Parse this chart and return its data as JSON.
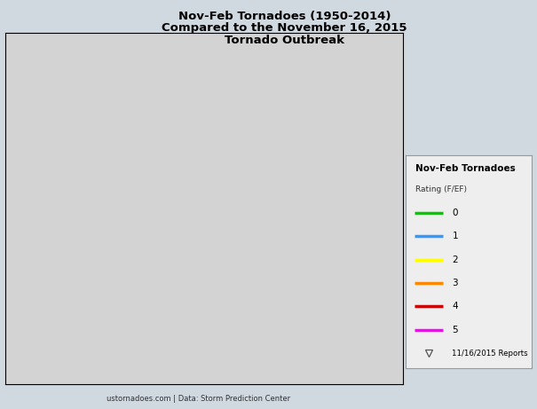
{
  "title_line1": "Nov-Feb Tornadoes (1950-2014)",
  "title_line2": "Compared to the November 16, 2015",
  "title_line3": "Tornado Outbreak",
  "credit_text": "ustornadoes.com | Data: Storm Prediction Center",
  "legend_title": "Nov-Feb Tornadoes",
  "legend_subtitle": "Rating (F/EF)",
  "legend_items": [
    "0",
    "1",
    "2",
    "3",
    "4",
    "5"
  ],
  "legend_colors": [
    "#00cc00",
    "#3399ff",
    "#ffff00",
    "#ff8800",
    "#cc0000",
    "#ff00ff"
  ],
  "legend_triangle_label": "11/16/2015 Reports",
  "bg_color": "#d0d8e0",
  "land_color": "#d3d3d3",
  "water_color": "#a8c8e0",
  "xlim": [
    -106,
    -64
  ],
  "ylim": [
    23.5,
    50.5
  ],
  "tornado_ef0_color": "#00cc00",
  "tornado_ef1_color": "#3399ff",
  "tornado_ef2_color": "#ffff00",
  "tornado_ef3_color": "#ff8800",
  "tornado_ef4_color": "#cc0000",
  "tornado_ef5_color": "#ff00ff",
  "nov2015_color": "#777777",
  "fig_width": 6.05,
  "fig_height": 4.61,
  "dpi": 100
}
